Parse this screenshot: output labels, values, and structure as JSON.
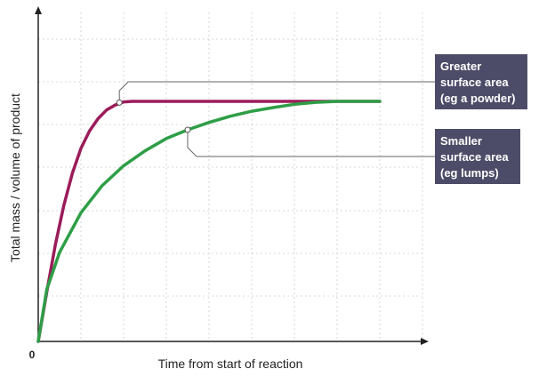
{
  "chart_data": {
    "type": "line",
    "xlabel": "Time from start of reaction",
    "ylabel": "Total mass / volume of product",
    "origin_label": "0",
    "grid": true,
    "series": [
      {
        "name": "",
        "color": "#9b1c5a",
        "points": [
          [
            0,
            0
          ],
          [
            0.2,
            20
          ],
          [
            0.4,
            39
          ],
          [
            0.6,
            55
          ],
          [
            0.8,
            68
          ],
          [
            1.0,
            78
          ],
          [
            1.2,
            85
          ],
          [
            1.4,
            90
          ],
          [
            1.6,
            93.5
          ],
          [
            1.8,
            95.5
          ],
          [
            2.0,
            96.8
          ],
          [
            2.2,
            97
          ],
          [
            3.0,
            97
          ],
          [
            4.0,
            97
          ],
          [
            5.0,
            97
          ],
          [
            6.0,
            97
          ],
          [
            8.0,
            97
          ]
        ]
      },
      {
        "name": "",
        "color": "#2e9e46",
        "points": [
          [
            0,
            0
          ],
          [
            0.2,
            21
          ],
          [
            0.5,
            36
          ],
          [
            1.0,
            52
          ],
          [
            1.5,
            63
          ],
          [
            2.0,
            71
          ],
          [
            2.5,
            77
          ],
          [
            3.0,
            82
          ],
          [
            3.5,
            85.5
          ],
          [
            4.0,
            88.5
          ],
          [
            4.5,
            91
          ],
          [
            5.0,
            93
          ],
          [
            5.5,
            94.5
          ],
          [
            6.0,
            95.8
          ],
          [
            6.5,
            96.6
          ],
          [
            7.0,
            97
          ],
          [
            8.0,
            97
          ]
        ]
      }
    ],
    "annotations": [
      {
        "lines": [
          "Greater",
          "surface area",
          "(eg a powder)"
        ],
        "series": 0,
        "x": 1.9,
        "y": 96.5
      },
      {
        "lines": [
          "Smaller",
          "surface area",
          "(eg lumps)"
        ],
        "series": 1,
        "x": 3.5,
        "y": 85.5
      }
    ],
    "colors": {
      "callout_bg": "#4d4c68",
      "leader": "#666666",
      "axis": "#222222",
      "grid": "#cccccc"
    }
  }
}
